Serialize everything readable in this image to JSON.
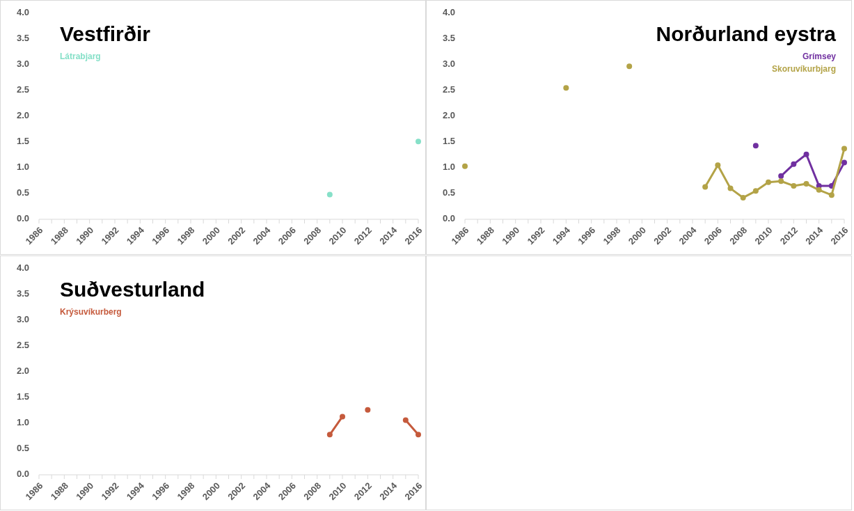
{
  "chart_data": [
    {
      "type": "line",
      "title": "Vestfirðir",
      "xlim": [
        1986,
        2016
      ],
      "xticks": [
        1986,
        {
          "value": 1987,
          "label": null
        },
        1988,
        {
          "value": 1989,
          "label": null
        },
        1990,
        {
          "value": 1991,
          "label": null
        },
        1992,
        {
          "value": 1993,
          "label": null
        },
        1994,
        {
          "value": 1995,
          "label": null
        },
        1996,
        {
          "value": 1997,
          "label": null
        },
        1998,
        {
          "value": 1999,
          "label": null
        },
        2000,
        {
          "value": 2001,
          "label": null
        },
        2002,
        {
          "value": 2003,
          "label": null
        },
        2004,
        {
          "value": 2005,
          "label": null
        },
        2006,
        {
          "value": 2007,
          "label": null
        },
        2008,
        {
          "value": 2009,
          "label": null
        },
        2010,
        {
          "value": 2011,
          "label": null
        },
        2012,
        {
          "value": 2013,
          "label": null
        },
        2014,
        {
          "value": 2015,
          "label": null
        },
        2016
      ],
      "ylim": [
        0,
        4
      ],
      "yticks": [
        {
          "value": 0,
          "label": "0.0"
        },
        {
          "value": 0.5,
          "label": "0.5"
        },
        {
          "value": 1,
          "label": "1.0"
        },
        {
          "value": 1.5,
          "label": "1.5"
        },
        {
          "value": 2,
          "label": "2.0"
        },
        {
          "value": 2.5,
          "label": "2.5"
        },
        {
          "value": 3,
          "label": "3.0"
        },
        {
          "value": 3.5,
          "label": "3.5"
        },
        {
          "value": 4,
          "label": "4.0"
        }
      ],
      "legend": "top left",
      "marker": "circle",
      "line_style": "solid",
      "series": [
        {
          "name": "Látrabjarg",
          "type": "scatter",
          "color": "#86e0c8",
          "x": [
            2009,
            2016
          ],
          "values": [
            0.48,
            1.51
          ]
        }
      ]
    },
    {
      "type": "line",
      "title": "Norðurland eystra",
      "xlim": [
        1986,
        2016
      ],
      "xticks": [
        1986,
        {
          "value": 1987,
          "label": null
        },
        1988,
        {
          "value": 1989,
          "label": null
        },
        1990,
        {
          "value": 1991,
          "label": null
        },
        1992,
        {
          "value": 1993,
          "label": null
        },
        1994,
        {
          "value": 1995,
          "label": null
        },
        1996,
        {
          "value": 1997,
          "label": null
        },
        1998,
        {
          "value": 1999,
          "label": null
        },
        2000,
        {
          "value": 2001,
          "label": null
        },
        2002,
        {
          "value": 2003,
          "label": null
        },
        2004,
        {
          "value": 2005,
          "label": null
        },
        2006,
        {
          "value": 2007,
          "label": null
        },
        2008,
        {
          "value": 2009,
          "label": null
        },
        2010,
        {
          "value": 2011,
          "label": null
        },
        2012,
        {
          "value": 2013,
          "label": null
        },
        2014,
        {
          "value": 2015,
          "label": null
        },
        2016
      ],
      "ylim": [
        0,
        4
      ],
      "yticks": [
        {
          "value": 0,
          "label": "0.0"
        },
        {
          "value": 0.5,
          "label": "0.5"
        },
        {
          "value": 1,
          "label": "1.0"
        },
        {
          "value": 1.5,
          "label": "1.5"
        },
        {
          "value": 2,
          "label": "2.0"
        },
        {
          "value": 2.5,
          "label": "2.5"
        },
        {
          "value": 3,
          "label": "3.0"
        },
        {
          "value": 3.5,
          "label": "3.5"
        },
        {
          "value": 4,
          "label": "4.0"
        }
      ],
      "legend": "top right",
      "marker": "circle",
      "line_style": "solid",
      "series": [
        {
          "name": "Grímsey",
          "color": "#7030a0",
          "x": [
            2009,
            2010,
            2011,
            2012,
            2013,
            2014,
            2015,
            2016
          ],
          "values": [
            1.43,
            null,
            0.84,
            1.07,
            1.26,
            0.65,
            0.65,
            1.1
          ]
        },
        {
          "name": "Skoruvíkurbjarg",
          "color": "#b3a347",
          "x": [
            1986,
            1987,
            1994,
            1995,
            1999,
            2000,
            2005,
            2006,
            2007,
            2008,
            2009,
            2010,
            2011,
            2012,
            2013,
            2014,
            2015,
            2016
          ],
          "values": [
            1.03,
            null,
            2.55,
            null,
            2.97,
            null,
            0.63,
            1.05,
            0.6,
            0.42,
            0.55,
            0.72,
            0.74,
            0.65,
            0.69,
            0.57,
            0.47,
            1.37
          ]
        }
      ]
    },
    {
      "type": "line",
      "title": "Suðvesturland",
      "xlim": [
        1986,
        2016
      ],
      "xticks": [
        1986,
        {
          "value": 1987,
          "label": null
        },
        1988,
        {
          "value": 1989,
          "label": null
        },
        1990,
        {
          "value": 1991,
          "label": null
        },
        1992,
        {
          "value": 1993,
          "label": null
        },
        1994,
        {
          "value": 1995,
          "label": null
        },
        1996,
        {
          "value": 1997,
          "label": null
        },
        1998,
        {
          "value": 1999,
          "label": null
        },
        2000,
        {
          "value": 2001,
          "label": null
        },
        2002,
        {
          "value": 2003,
          "label": null
        },
        2004,
        {
          "value": 2005,
          "label": null
        },
        2006,
        {
          "value": 2007,
          "label": null
        },
        2008,
        {
          "value": 2009,
          "label": null
        },
        2010,
        {
          "value": 2011,
          "label": null
        },
        2012,
        {
          "value": 2013,
          "label": null
        },
        2014,
        {
          "value": 2015,
          "label": null
        },
        2016
      ],
      "ylim": [
        0,
        4
      ],
      "yticks": [
        {
          "value": 0,
          "label": "0.0"
        },
        {
          "value": 0.5,
          "label": "0.5"
        },
        {
          "value": 1,
          "label": "1.0"
        },
        {
          "value": 1.5,
          "label": "1.5"
        },
        {
          "value": 2,
          "label": "2.0"
        },
        {
          "value": 2.5,
          "label": "2.5"
        },
        {
          "value": 3,
          "label": "3.0"
        },
        {
          "value": 3.5,
          "label": "3.5"
        },
        {
          "value": 4,
          "label": "4.0"
        }
      ],
      "legend": "top left",
      "marker": "circle",
      "line_style": "solid",
      "series": [
        {
          "name": "Krýsuvíkurberg",
          "color": "#c55a3c",
          "x": [
            2009,
            2010,
            2011,
            2012,
            2013,
            2015,
            2016
          ],
          "values": [
            0.78,
            1.13,
            null,
            1.26,
            null,
            1.06,
            0.78
          ]
        }
      ]
    }
  ]
}
